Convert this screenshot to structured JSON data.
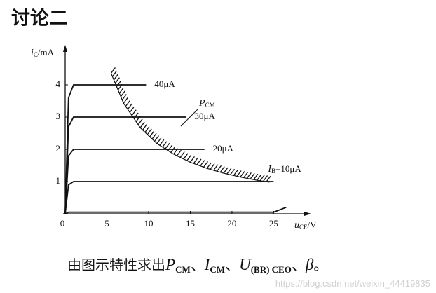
{
  "heading": "讨论二",
  "chart_data": {
    "type": "line",
    "y_label": {
      "main": "i",
      "sub": "C",
      "unit": "/mA"
    },
    "x_label": {
      "main": "u",
      "sub": "CE",
      "unit": "/V"
    },
    "x": [
      0,
      0.4,
      1,
      9.7,
      14.5,
      16.7,
      25,
      26.5
    ],
    "xlim": [
      0,
      29
    ],
    "ylim": [
      0,
      5
    ],
    "xticks": [
      0,
      5,
      10,
      15,
      20,
      25
    ],
    "yticks": [
      1,
      2,
      3,
      4
    ],
    "series": [
      {
        "name": "40μA",
        "color": "#111111",
        "values": [
          0,
          3.6,
          4,
          4,
          null,
          null,
          null,
          null
        ]
      },
      {
        "name": "30μA",
        "color": "#111111",
        "values": [
          0,
          2.7,
          3,
          3,
          3,
          null,
          null,
          null
        ]
      },
      {
        "name": "20μA",
        "color": "#111111",
        "values": [
          0,
          1.8,
          2,
          2,
          2,
          2,
          null,
          null
        ]
      },
      {
        "name": "=10μA",
        "name_prefix": {
          "main": "I",
          "sub": "B"
        },
        "color": "#111111",
        "values": [
          0,
          0.9,
          1,
          1,
          1,
          1,
          1,
          null
        ]
      },
      {
        "color": "#111111",
        "values": [
          0,
          0.05,
          0.05,
          0.05,
          0.05,
          0.05,
          0.05,
          0.2
        ]
      }
    ],
    "pcm_curve": {
      "label": {
        "main": "P",
        "sub": "CM"
      },
      "x": [
        5.5,
        7,
        9,
        11,
        13,
        15,
        17,
        19,
        21,
        23,
        24.5
      ],
      "values": [
        4.36,
        3.43,
        2.67,
        2.18,
        1.85,
        1.6,
        1.41,
        1.26,
        1.14,
        1.04,
        0.98
      ]
    }
  },
  "caption": [
    {
      "t": "由图示特性求出",
      "style": "plain"
    },
    {
      "t": "P",
      "style": "italic"
    },
    {
      "t": "CM",
      "style": "sub"
    },
    {
      "t": "、",
      "style": "plain"
    },
    {
      "t": "I",
      "style": "italic"
    },
    {
      "t": "CM",
      "style": "sub"
    },
    {
      "t": "、",
      "style": "plain"
    },
    {
      "t": "U",
      "style": "italic"
    },
    {
      "t": "(BR) CEO",
      "style": "sub"
    },
    {
      "t": "、",
      "style": "plain"
    },
    {
      "t": "β",
      "style": "italic"
    },
    {
      "t": "。",
      "style": "plain"
    }
  ],
  "watermark": "https://blog.csdn.net/weixin_44419835"
}
